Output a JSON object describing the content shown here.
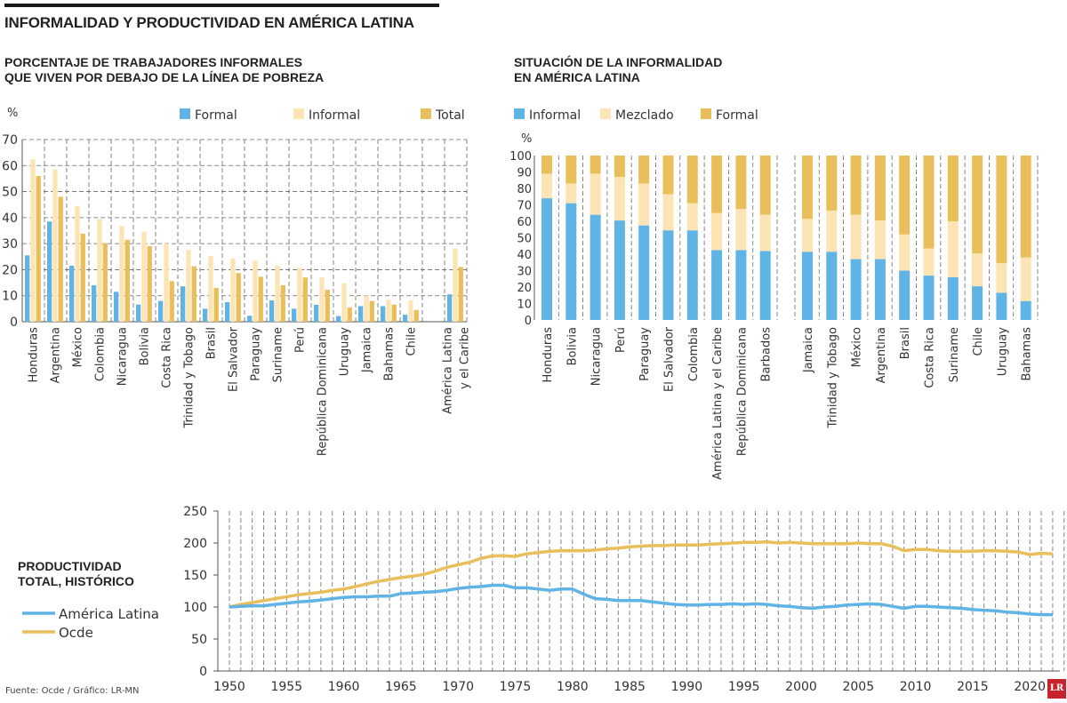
{
  "title": "INFORMALIDAD Y PRODUCTIVIDAD EN AMÉRICA LATINA",
  "source": "Fuente: Ocde / Gráfico: LR-MN",
  "logo": "LR",
  "colors": {
    "blue": "#5fb4e5",
    "light": "#fde4b4",
    "gold": "#e8bf5a",
    "grid": "#666666"
  },
  "chart_data": [
    {
      "type": "bar",
      "title": "PORCENTAJE DE TRABAJADORES INFORMALES QUE VIVEN POR DEBAJO DE LA LÍNEA DE POBREZA",
      "title_lines": [
        "PORCENTAJE DE TRABAJADORES INFORMALES",
        "QUE VIVEN POR DEBAJO DE LA LÍNEA DE POBREZA"
      ],
      "ylabel": "%",
      "ylim": [
        0,
        70
      ],
      "yticks": [
        0,
        10,
        20,
        30,
        40,
        50,
        60,
        70
      ],
      "grid": true,
      "legend": "top",
      "categories": [
        "Honduras",
        "Argentina",
        "México",
        "Colombia",
        "Nicaragua",
        "Bolivia",
        "Costa Rica",
        "Trinidad y Tobago",
        "Brasil",
        "El Salvador",
        "Paraguay",
        "Suriname",
        "Perú",
        "República Dominicana",
        "Uruguay",
        "Jamaica",
        "Bahamas",
        "Chile",
        "América Latina y el Caribe"
      ],
      "series": [
        {
          "name": "Formal",
          "color": "#5fb4e5",
          "values": [
            25.5,
            38.5,
            21.5,
            14,
            11.5,
            6.6,
            8,
            13.6,
            5,
            7.5,
            2.3,
            8.2,
            5,
            6.5,
            2.2,
            6,
            6,
            2.7,
            10.5
          ]
        },
        {
          "name": "Informal",
          "color": "#fde4b4",
          "values": [
            62.5,
            58.5,
            44.5,
            39.5,
            36.8,
            34.6,
            30,
            27.6,
            25.2,
            24.3,
            23.5,
            21.5,
            20.7,
            17,
            14.8,
            10,
            8.5,
            8.2,
            28.2
          ]
        },
        {
          "name": "Total",
          "color": "#e8bf5a",
          "values": [
            56,
            48,
            33.8,
            30.2,
            31.5,
            29,
            15.6,
            21.3,
            13,
            18.7,
            17.3,
            14,
            17,
            12.3,
            5.5,
            8,
            6.6,
            4.5,
            21
          ]
        }
      ]
    },
    {
      "type": "bar",
      "stacked": true,
      "title": "SITUACIÓN DE LA INFORMALIDAD EN AMÉRICA LATINA",
      "title_lines": [
        "SITUACIÓN DE LA INFORMALIDAD",
        "EN AMÉRICA LATINA"
      ],
      "ylabel": "%",
      "ylim": [
        0,
        100
      ],
      "yticks": [
        0,
        10,
        20,
        30,
        40,
        50,
        60,
        70,
        80,
        90,
        100
      ],
      "grid": true,
      "legend": "top",
      "categories": [
        "Honduras",
        "Bolivia",
        "Nicaragua",
        "Perú",
        "Paraguay",
        "El Salvador",
        "Colombia",
        "América Latina y el Caribe",
        "República Dominicana",
        "Barbados",
        "Jamaica",
        "Trinidad y Tobago",
        "México",
        "Argentina",
        "Brasil",
        "Costa Rica",
        "Suriname",
        "Chile",
        "Uruguay",
        "Bahamas"
      ],
      "series": [
        {
          "name": "Informal",
          "color": "#5fb4e5",
          "values": [
            74,
            71,
            64,
            60.5,
            57.5,
            54.5,
            54.5,
            42.5,
            42.5,
            42,
            41.5,
            41.5,
            37,
            37,
            30,
            27,
            26,
            20.5,
            16.5,
            11.5
          ]
        },
        {
          "name": "Mezclado",
          "color": "#fde4b4",
          "values": [
            15,
            12,
            25,
            26.5,
            25.5,
            22,
            16.5,
            22.5,
            25,
            22,
            20,
            25,
            27,
            23.5,
            22,
            16.5,
            34,
            20,
            18,
            26.5
          ]
        },
        {
          "name": "Formal",
          "color": "#e8bf5a",
          "values": [
            11,
            17,
            11,
            13,
            17,
            23.5,
            29,
            35,
            32.5,
            36,
            38.5,
            33.5,
            36,
            39.5,
            48,
            56.5,
            40,
            59.5,
            65.5,
            62
          ]
        }
      ]
    },
    {
      "type": "line",
      "title": "PRODUCTIVIDAD TOTAL, HISTÓRICO",
      "title_lines": [
        "PRODUCTIVIDAD",
        "TOTAL, HISTÓRICO"
      ],
      "ylim": [
        0,
        250
      ],
      "yticks": [
        0,
        50,
        100,
        150,
        200,
        250
      ],
      "xlim": [
        1950,
        2022
      ],
      "xticks": [
        1950,
        1955,
        1960,
        1965,
        1970,
        1975,
        1980,
        1985,
        1990,
        1995,
        2000,
        2005,
        2010,
        2015,
        2020
      ],
      "grid": true,
      "legend": "left",
      "x_start": 1950,
      "series": [
        {
          "name": "América Latina",
          "color": "#5fb4e5",
          "values": [
            100,
            101,
            102,
            102,
            104,
            106,
            108,
            109,
            111,
            113,
            115,
            116,
            116,
            117,
            117,
            121,
            122,
            123,
            124,
            126,
            129,
            131,
            132,
            134,
            134,
            130,
            130,
            128,
            126,
            128,
            128,
            120,
            113,
            112,
            110,
            110,
            110,
            108,
            106,
            104,
            103,
            103,
            104,
            104,
            105,
            104,
            105,
            104,
            102,
            101,
            99,
            98,
            100,
            101,
            103,
            104,
            105,
            104,
            101,
            98,
            101,
            101,
            100,
            99,
            98,
            96,
            95,
            94,
            92,
            91,
            89,
            88,
            88
          ]
        },
        {
          "name": "Ocde",
          "color": "#e8bf5a",
          "values": [
            100,
            104,
            107,
            110,
            113,
            116,
            119,
            121,
            123,
            126,
            128,
            132,
            136,
            140,
            143,
            146,
            148,
            151,
            156,
            162,
            166,
            170,
            176,
            180,
            180,
            179,
            183,
            185,
            187,
            188,
            188,
            188,
            189,
            191,
            192,
            194,
            195,
            196,
            196,
            197,
            197,
            197,
            198,
            199,
            200,
            201,
            201,
            202,
            200,
            201,
            200,
            199,
            199,
            199,
            199,
            200,
            199,
            199,
            195,
            188,
            190,
            190,
            188,
            187,
            187,
            187,
            188,
            188,
            187,
            186,
            182,
            184,
            183
          ]
        }
      ]
    }
  ]
}
